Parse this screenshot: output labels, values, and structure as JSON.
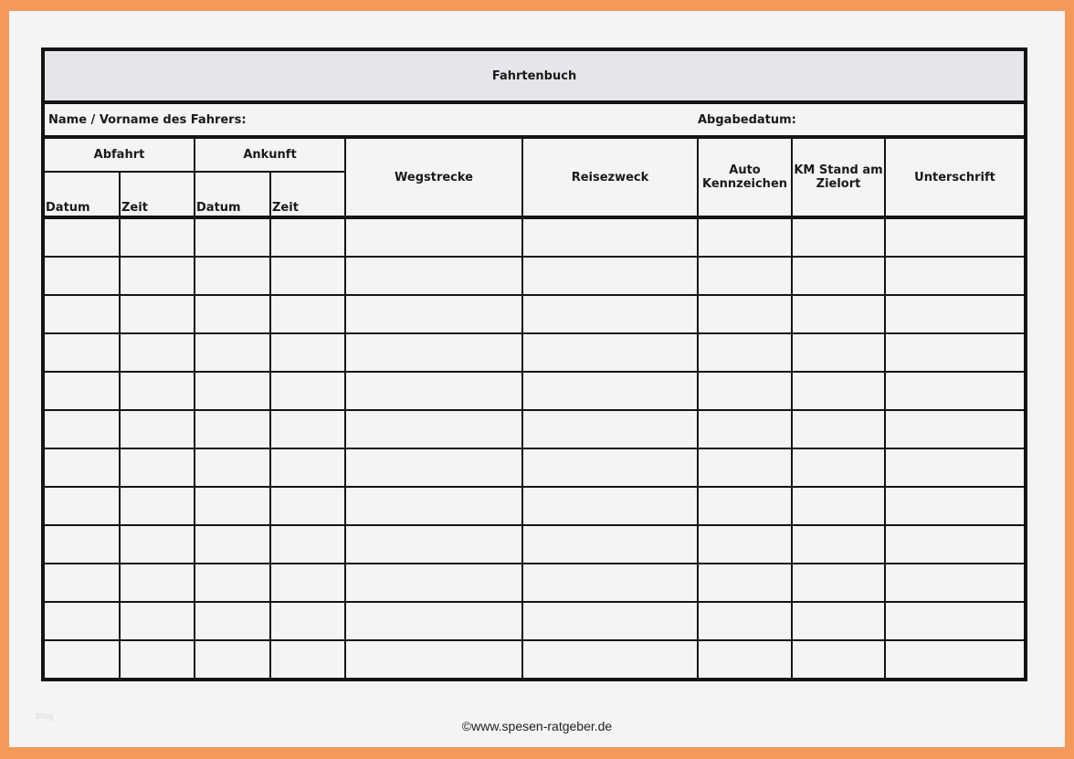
{
  "title": "Fahrtenbuch",
  "name_label": "Name / Vorname des Fahrers:",
  "date_label": "Abgabedatum:",
  "headers": {
    "abfahrt": "Abfahrt",
    "ankunft": "Ankunft",
    "datum": "Datum",
    "zeit": "Zeit",
    "wegstrecke": "Wegstrecke",
    "reisezweck": "Reisezweck",
    "auto_line1": "Auto",
    "auto_line2": "Kennzeichen",
    "km_line1": "KM Stand am",
    "km_line2": "Zielort",
    "unterschrift": "Unterschrift"
  },
  "row_count": 12,
  "watermark": "blog",
  "footer": "©www.spesen-ratgeber.de",
  "colors": {
    "border_frame": "#f39a5a",
    "title_bg": "#e6e6ea",
    "paper": "#f4f4f4"
  }
}
